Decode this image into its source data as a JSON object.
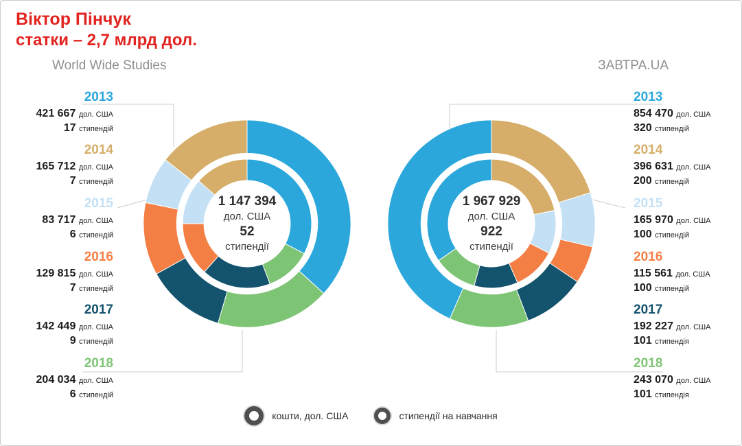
{
  "header": {
    "title_line1": "Віктор Пінчук",
    "title_line2": "статки – 2,7 млрд дол.",
    "title_color": "#e2231f"
  },
  "colors": {
    "2013": "#2ba7dc",
    "2014": "#d6ae69",
    "2015": "#c4e0f4",
    "2016": "#f47f45",
    "2017": "#14536d",
    "2018": "#7ec475"
  },
  "chart_data": [
    {
      "type": "donut",
      "title": "World Wide Studies",
      "rings": {
        "outer": "money",
        "inner": "scholarships"
      },
      "years": [
        "2013",
        "2014",
        "2015",
        "2016",
        "2017",
        "2018"
      ],
      "money": [
        421667,
        165712,
        83717,
        129815,
        142449,
        204034
      ],
      "scholarships": [
        17,
        7,
        6,
        7,
        9,
        6
      ],
      "total_money": 1147394,
      "total_scholarships": 52,
      "center": {
        "amount": "1 147 394",
        "amount_unit": "дол. США",
        "count": "52",
        "count_unit": "стипендії"
      },
      "labels": [
        {
          "year": "2013",
          "money": "421 667",
          "money_unit": "дол. США",
          "count": "17",
          "count_unit": "стипендій"
        },
        {
          "year": "2014",
          "money": "165 712",
          "money_unit": "дол. США",
          "count": "7",
          "count_unit": "стипендій"
        },
        {
          "year": "2015",
          "money": "83 717",
          "money_unit": "дол. США",
          "count": "6",
          "count_unit": "стипендій"
        },
        {
          "year": "2016",
          "money": "129 815",
          "money_unit": "дол. США",
          "count": "7",
          "count_unit": "стипендій"
        },
        {
          "year": "2017",
          "money": "142 449",
          "money_unit": "дол. США",
          "count": "9",
          "count_unit": "стипендій"
        },
        {
          "year": "2018",
          "money": "204 034",
          "money_unit": "дол. США",
          "count": "6",
          "count_unit": "стипендій"
        }
      ],
      "layout": {
        "clockwise": true,
        "start": "top",
        "draw_order": [
          0,
          5,
          4,
          3,
          2,
          1
        ],
        "labels_side": "left"
      }
    },
    {
      "type": "donut",
      "title": "ЗАВТРА.UA",
      "rings": {
        "outer": "money",
        "inner": "scholarships"
      },
      "years": [
        "2013",
        "2014",
        "2015",
        "2016",
        "2017",
        "2018"
      ],
      "money": [
        854470,
        396631,
        165970,
        115561,
        192227,
        243070
      ],
      "scholarships": [
        320,
        200,
        100,
        100,
        101,
        101
      ],
      "total_money": 1967929,
      "total_scholarships": 922,
      "center": {
        "amount": "1 967 929",
        "amount_unit": "дол. США",
        "count": "922",
        "count_unit": "стипендії"
      },
      "labels": [
        {
          "year": "2013",
          "money": "854 470",
          "money_unit": "дол. США",
          "count": "320",
          "count_unit": "стипендій"
        },
        {
          "year": "2014",
          "money": "396 631",
          "money_unit": "дол. США",
          "count": "200",
          "count_unit": "стипендій"
        },
        {
          "year": "2015",
          "money": "165 970",
          "money_unit": "дол. США",
          "count": "100",
          "count_unit": "стипендій"
        },
        {
          "year": "2016",
          "money": "115 561",
          "money_unit": "дол. США",
          "count": "100",
          "count_unit": "стипендій"
        },
        {
          "year": "2017",
          "money": "192 227",
          "money_unit": "дол. США",
          "count": "101",
          "count_unit": "стипендія"
        },
        {
          "year": "2018",
          "money": "243 070",
          "money_unit": "дол. США",
          "count": "101",
          "count_unit": "стипендія"
        }
      ],
      "layout": {
        "clockwise": true,
        "start": "top",
        "draw_order": [
          1,
          2,
          3,
          4,
          5,
          0
        ],
        "labels_side": "right"
      }
    }
  ],
  "legend": {
    "items": [
      {
        "icon": "outer-ring-icon",
        "label": "кошти, дол. США"
      },
      {
        "icon": "inner-ring-icon",
        "label": "стипендії на навчання"
      }
    ]
  }
}
